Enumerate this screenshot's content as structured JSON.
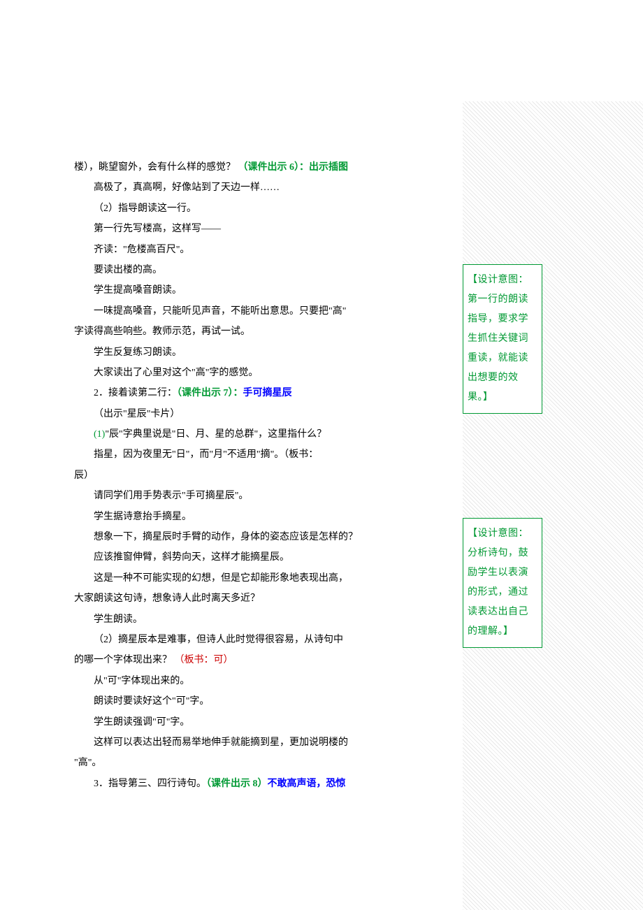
{
  "lines": [
    {
      "cls": "no-indent",
      "parts": [
        {
          "t": "楼），眺望窗外，会有什么样的感觉？ "
        },
        {
          "t": "（课件出示 6）：出示插图",
          "color": "green",
          "bold": true
        }
      ]
    },
    {
      "cls": "indent2",
      "parts": [
        {
          "t": "高极了，真高啊，好像站到了天边一样……"
        }
      ]
    },
    {
      "cls": "indent1",
      "parts": [
        {
          "t": "（2）指导朗读这一行。"
        }
      ]
    },
    {
      "cls": "indent1",
      "parts": [
        {
          "t": "第一行先写楼高，这样写——"
        }
      ]
    },
    {
      "cls": "indent2",
      "parts": [
        {
          "t": "齐读：\"危楼高百尺\"。"
        }
      ]
    },
    {
      "cls": "indent2",
      "parts": [
        {
          "t": "要读出楼的高。"
        }
      ]
    },
    {
      "cls": "indent2",
      "parts": [
        {
          "t": "学生提高嗓音朗读。"
        }
      ]
    },
    {
      "cls": "indent2",
      "parts": [
        {
          "t": "一味提高嗓音，只能听见声音，不能听出意思。只要把\"高\""
        }
      ]
    },
    {
      "cls": "no-indent",
      "parts": [
        {
          "t": "字读得高些响些。教师示范，再试一试。"
        }
      ]
    },
    {
      "cls": "indent2",
      "parts": [
        {
          "t": "学生反复练习朗读。"
        }
      ]
    },
    {
      "cls": "indent2",
      "parts": [
        {
          "t": "大家读出了心里对这个\"高\"字的感觉。"
        }
      ]
    },
    {
      "cls": "indent1",
      "parts": [
        {
          "t": "2．接着读第二行："
        },
        {
          "t": "（课件出示 7）：",
          "color": "green",
          "bold": true
        },
        {
          "t": "手可摘星辰",
          "color": "blue",
          "bold": true
        }
      ]
    },
    {
      "cls": "indent1",
      "parts": [
        {
          "t": "（出示\"星辰\"卡片）"
        }
      ]
    },
    {
      "cls": "indent1",
      "parts": [
        {
          "t": "(1)",
          "color": "green"
        },
        {
          "t": "\"辰\"字典里说是\"日、月、星的总群\"，这里指什么？"
        }
      ]
    },
    {
      "cls": "indent1",
      "parts": [
        {
          "t": "指星，因为夜里无\"日\"，而\"月\"不适用\"摘\"。（板书："
        }
      ]
    },
    {
      "cls": "no-indent",
      "parts": [
        {
          "t": "辰）"
        }
      ]
    },
    {
      "cls": "indent1",
      "parts": [
        {
          "t": "请同学们用手势表示\"手可摘星辰\"。"
        }
      ]
    },
    {
      "cls": "indent1",
      "parts": [
        {
          "t": "学生据诗意抬手摘星。"
        }
      ]
    },
    {
      "cls": "indent1",
      "parts": [
        {
          "t": "想象一下，摘星辰时手臂的动作，身体的姿态应该是怎样的？"
        }
      ]
    },
    {
      "cls": "indent1",
      "parts": [
        {
          "t": "应该推窗伸臂，斜势向天，这样才能摘星辰。"
        }
      ]
    },
    {
      "cls": "indent1",
      "parts": [
        {
          "t": "这是一种不可能实现的幻想，但是它却能形象地表现出高，"
        }
      ]
    },
    {
      "cls": "no-indent",
      "parts": [
        {
          "t": "大家朗读这句诗，想象诗人此时离天多近？"
        }
      ]
    },
    {
      "cls": "indent2",
      "parts": [
        {
          "t": " 学生朗读。"
        }
      ]
    },
    {
      "cls": "indent2",
      "parts": [
        {
          "t": "（2）摘星辰本是难事，但诗人此时觉得很容易，从诗句中"
        }
      ]
    },
    {
      "cls": "no-indent",
      "parts": [
        {
          "t": "的哪一个字体现出来？ "
        },
        {
          "t": "（板书：可）",
          "color": "red"
        }
      ]
    },
    {
      "cls": "indent2",
      "parts": [
        {
          "t": "从\"可\"字体现出来的。"
        }
      ]
    },
    {
      "cls": "indent2",
      "parts": [
        {
          "t": "朗读时要读好这个\"可\"字。"
        }
      ]
    },
    {
      "cls": "indent2",
      "parts": [
        {
          "t": "学生朗读强调\"可\"字。"
        }
      ]
    },
    {
      "cls": "indent2",
      "parts": [
        {
          "t": "这样可以表达出轻而易举地伸手就能摘到星，更加说明楼的"
        }
      ]
    },
    {
      "cls": "no-indent",
      "parts": [
        {
          "t": "\"高\"。"
        }
      ]
    },
    {
      "cls": "indent2",
      "parts": [
        {
          "t": "3．指导第三、四行诗句。"
        },
        {
          "t": "（课件出示 8）",
          "color": "green",
          "bold": true
        },
        {
          "t": "不敢高声语，恐惊",
          "color": "blue",
          "bold": true
        }
      ]
    }
  ],
  "callout1": {
    "text": "【设计意图：第一行的朗读指导，要求学生抓住关键词重读，就能读出想要的效果。】"
  },
  "callout2": {
    "text": "【设计意图：分析诗句，鼓励学生以表演的形式，通过读表达出自己的理解。】"
  }
}
